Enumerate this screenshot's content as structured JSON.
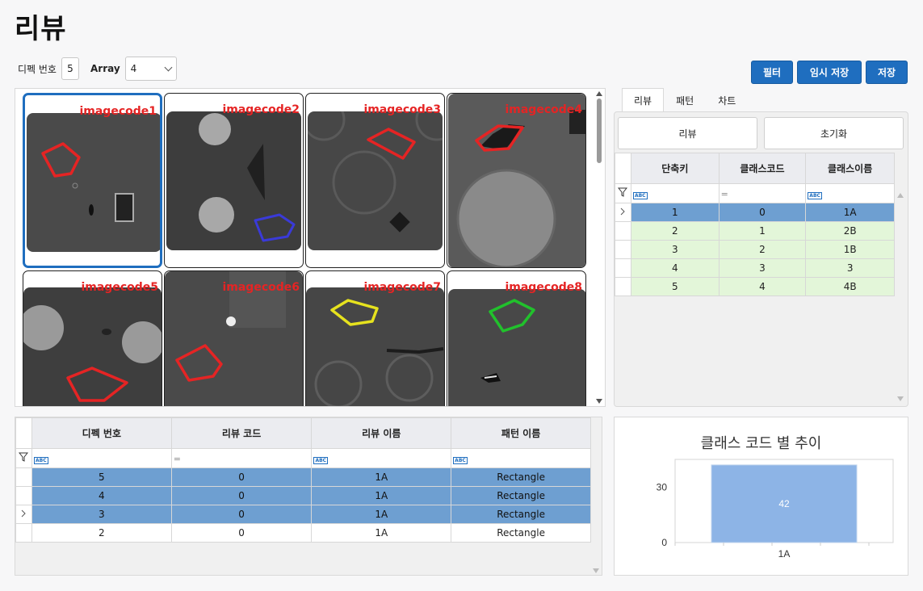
{
  "page": {
    "title": "리뷰"
  },
  "filters": {
    "defect_label": "디펙 번호",
    "defect_value": "5",
    "array_label": "Array",
    "array_value": "4"
  },
  "toolbar": {
    "filter_label": "필터",
    "temp_save_label": "임시 저장",
    "save_label": "저장"
  },
  "images": [
    {
      "code": "imagecode1",
      "selected": true
    },
    {
      "code": "imagecode2",
      "selected": false
    },
    {
      "code": "imagecode3",
      "selected": false
    },
    {
      "code": "imagecode4",
      "selected": false
    },
    {
      "code": "imagecode5",
      "selected": false
    },
    {
      "code": "imagecode6",
      "selected": false
    },
    {
      "code": "imagecode7",
      "selected": false
    },
    {
      "code": "imagecode8",
      "selected": false
    }
  ],
  "tabs": [
    {
      "label": "리뷰"
    },
    {
      "label": "패턴"
    },
    {
      "label": "차트"
    }
  ],
  "review_panel": {
    "review_button": "리뷰",
    "reset_button": "초기화",
    "columns": [
      "단축키",
      "클래스코드",
      "클래스이름"
    ],
    "rows": [
      [
        "1",
        "0",
        "1A"
      ],
      [
        "2",
        "1",
        "2B"
      ],
      [
        "3",
        "2",
        "1B"
      ],
      [
        "4",
        "3",
        "3"
      ],
      [
        "5",
        "4",
        "4B"
      ]
    ]
  },
  "defect_table": {
    "columns": [
      "디펙 번호",
      "리뷰 코드",
      "리뷰 이름",
      "패턴 이름"
    ],
    "rows": [
      [
        "5",
        "0",
        "1A",
        "Rectangle"
      ],
      [
        "4",
        "0",
        "1A",
        "Rectangle"
      ],
      [
        "3",
        "0",
        "1A",
        "Rectangle"
      ],
      [
        "2",
        "0",
        "1A",
        "Rectangle"
      ]
    ]
  },
  "chart_data": {
    "type": "bar",
    "title": "클래스 코드 별 추이",
    "categories": [
      "1A"
    ],
    "values": [
      42
    ],
    "yticks": [
      0,
      30
    ],
    "ylim": [
      0,
      45
    ],
    "bar_color": "#8db4e6"
  },
  "colors": {
    "accent": "#1f6ebf",
    "selected_row": "#6e9fd1",
    "class_row": "#e3f6d9",
    "image_code": "#e52424"
  }
}
